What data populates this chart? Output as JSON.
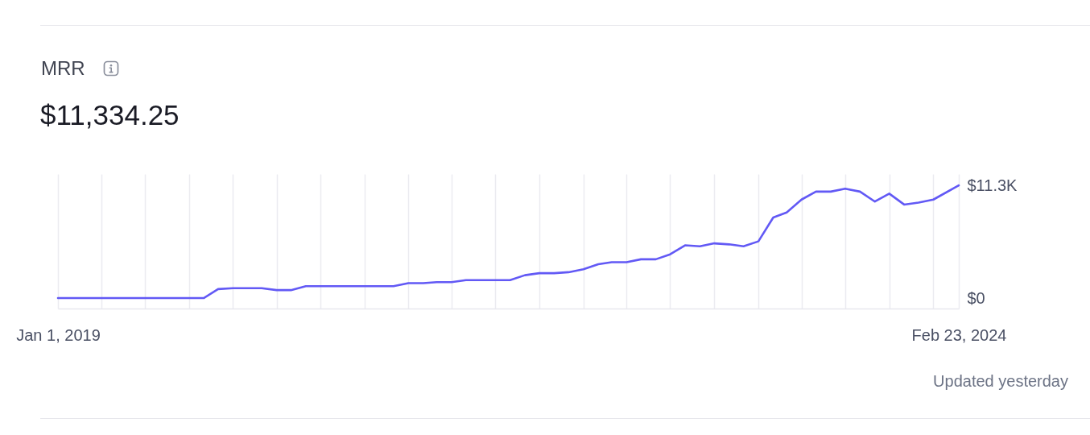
{
  "chart_data": {
    "type": "line",
    "title": "MRR",
    "subtitle": "$11,334.25",
    "annotations": [
      "Updated yesterday"
    ],
    "x": [
      "2019-01",
      "2019-02",
      "2019-03",
      "2019-04",
      "2019-05",
      "2019-06",
      "2019-07",
      "2019-08",
      "2019-09",
      "2019-10",
      "2019-11",
      "2019-12",
      "2020-01",
      "2020-02",
      "2020-03",
      "2020-04",
      "2020-05",
      "2020-06",
      "2020-07",
      "2020-08",
      "2020-09",
      "2020-10",
      "2020-11",
      "2020-12",
      "2021-01",
      "2021-02",
      "2021-03",
      "2021-04",
      "2021-05",
      "2021-06",
      "2021-07",
      "2021-08",
      "2021-09",
      "2021-10",
      "2021-11",
      "2021-12",
      "2022-01",
      "2022-02",
      "2022-03",
      "2022-04",
      "2022-05",
      "2022-06",
      "2022-07",
      "2022-08",
      "2022-09",
      "2022-10",
      "2022-11",
      "2022-12",
      "2023-01",
      "2023-02",
      "2023-03",
      "2023-04",
      "2023-05",
      "2023-06",
      "2023-07",
      "2023-08",
      "2023-09",
      "2023-10",
      "2023-11",
      "2023-12",
      "2024-01",
      "2024-02-23"
    ],
    "values": [
      0,
      0,
      0,
      0,
      0,
      0,
      0,
      0,
      0,
      0,
      0,
      900,
      1000,
      1000,
      1000,
      800,
      800,
      1200,
      1200,
      1200,
      1200,
      1200,
      1200,
      1200,
      1500,
      1500,
      1600,
      1600,
      1800,
      1800,
      1800,
      1800,
      2300,
      2500,
      2500,
      2600,
      2900,
      3400,
      3600,
      3600,
      3900,
      3900,
      4400,
      5300,
      5200,
      5500,
      5400,
      5200,
      5700,
      8100,
      8600,
      9900,
      10700,
      10700,
      11000,
      10700,
      9700,
      10500,
      9400,
      9600,
      9900,
      11334.25
    ],
    "color": "#6259f5",
    "line_style": "solid",
    "xlim": [
      "2019-01-01",
      "2024-02-23"
    ],
    "xticks": [
      {
        "value": "2019-01-01",
        "label": "Jan 1, 2019"
      },
      {
        "value": "2019-04-01",
        "label": null
      },
      {
        "value": "2019-07-01",
        "label": null
      },
      {
        "value": "2019-10-01",
        "label": null
      },
      {
        "value": "2020-01-01",
        "label": null
      },
      {
        "value": "2020-04-01",
        "label": null
      },
      {
        "value": "2020-07-01",
        "label": null
      },
      {
        "value": "2020-10-01",
        "label": null
      },
      {
        "value": "2021-01-01",
        "label": null
      },
      {
        "value": "2021-04-01",
        "label": null
      },
      {
        "value": "2021-07-01",
        "label": null
      },
      {
        "value": "2021-10-01",
        "label": null
      },
      {
        "value": "2022-01-01",
        "label": null
      },
      {
        "value": "2022-04-01",
        "label": null
      },
      {
        "value": "2022-07-01",
        "label": null
      },
      {
        "value": "2022-10-01",
        "label": null
      },
      {
        "value": "2023-01-01",
        "label": null
      },
      {
        "value": "2023-04-01",
        "label": null
      },
      {
        "value": "2023-07-01",
        "label": null
      },
      {
        "value": "2023-10-01",
        "label": null
      },
      {
        "value": "2024-01-01",
        "label": null
      },
      {
        "value": "2024-02-23",
        "label": "Feb 23, 2024"
      }
    ],
    "ylim": [
      -1050,
      12470
    ],
    "yticks": [
      {
        "value": 0,
        "label": "$0"
      },
      {
        "value": 11300,
        "label": "$11.3K"
      }
    ],
    "grid": "x"
  }
}
